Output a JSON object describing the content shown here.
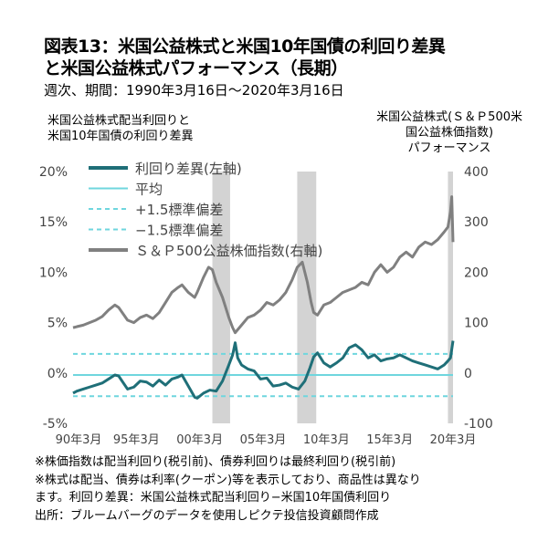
{
  "header": {
    "title_line1": "図表13：米国公益株式と米国10年国債の利回り差異",
    "title_line2": "と米国公益株式パフォーマンス（長期）",
    "subtitle": "週次、期間：1990年3月16日～2020年3月16日"
  },
  "notes": [
    "※株価指数は配当利回り(税引前)、債券利回りは最終利回り(税引前)",
    "※株式は配当、債券は利率(クーポン)等を表示しており、商品性は異なり",
    "ます。利回り差異：米国公益株式配当利回り−米国10年国債利回り",
    "出所：ブルームバーグのデータを使用しピクテ投信投資顧問作成"
  ],
  "chart_data": {
    "type": "line",
    "ylabel": "米国公益株式配当利回りと\n米国10年国債の利回り差異",
    "y2label": "米国公益株式(Ｓ＆Ｐ500米\n国公益株価指数)\nパフォーマンス",
    "ylim": [
      -5,
      20
    ],
    "y2lim": [
      -100,
      400
    ],
    "yticks": [
      "20%",
      "15%",
      "10%",
      "5%",
      "0%",
      "-5%"
    ],
    "y2ticks": [
      "400",
      "300",
      "200",
      "100",
      "0",
      "-100"
    ],
    "xticks": [
      "90年3月",
      "95年3月",
      "00年3月",
      "05年3月",
      "10年3月",
      "15年3月",
      "20年3月"
    ],
    "xlim": [
      1990.2,
      2020.2
    ],
    "legend": [
      "利回り差異(左軸)",
      "平均",
      "+1.5標準偏差",
      "−1.5標準偏差",
      "Ｓ＆Ｐ500公益株価指数(右軸)"
    ],
    "legend_position": "top-left",
    "shaded_periods": [
      [
        2001.2,
        2002.6
      ],
      [
        2007.9,
        2009.4
      ],
      [
        2019.8,
        2020.9
      ]
    ],
    "colors": {
      "spread": "#1f6f78",
      "mean": "#6fd6de",
      "band": "#6fd6de",
      "index": "#808080",
      "shade": "#d3d3d3"
    },
    "mean_line": -0.2,
    "upper_band": 1.9,
    "lower_band": -2.3,
    "series": [
      {
        "name": "利回り差異(左軸)",
        "x": [
          1990.2,
          1990.5,
          1991.0,
          1991.5,
          1992.0,
          1992.5,
          1993.0,
          1993.5,
          1993.8,
          1994.5,
          1995.0,
          1995.5,
          1996.0,
          1996.5,
          1997.0,
          1997.5,
          1998.0,
          1998.5,
          1998.8,
          1999.3,
          1999.8,
          2000.0,
          2000.5,
          2001.0,
          2001.5,
          2002.0,
          2002.5,
          2002.8,
          2003.0,
          2003.2,
          2003.5,
          2004.0,
          2004.5,
          2005.0,
          2005.5,
          2006.0,
          2006.5,
          2007.0,
          2007.5,
          2008.0,
          2008.5,
          2008.9,
          2009.2,
          2009.5,
          2010.0,
          2010.5,
          2011.0,
          2011.5,
          2012.0,
          2012.5,
          2013.0,
          2013.5,
          2014.0,
          2014.5,
          2015.0,
          2015.5,
          2016.0,
          2016.5,
          2017.0,
          2017.5,
          2018.0,
          2018.5,
          2019.0,
          2019.5,
          2019.8,
          2020.0,
          2020.2
        ],
        "values": [
          -2.0,
          -1.8,
          -1.6,
          -1.4,
          -1.2,
          -1.0,
          -0.6,
          -0.2,
          -0.3,
          -1.6,
          -1.4,
          -0.8,
          -0.9,
          -1.3,
          -0.7,
          -1.2,
          -0.6,
          -0.4,
          -0.2,
          -1.3,
          -2.4,
          -2.5,
          -2.0,
          -1.7,
          -1.8,
          -0.8,
          0.8,
          1.8,
          3.0,
          1.5,
          0.8,
          0.4,
          0.2,
          -0.6,
          -0.5,
          -1.3,
          -1.2,
          -1.0,
          -1.4,
          -1.6,
          -0.8,
          0.5,
          1.6,
          2.0,
          1.0,
          0.6,
          1.0,
          1.5,
          2.5,
          2.8,
          2.3,
          1.5,
          1.8,
          1.2,
          1.4,
          1.5,
          1.8,
          1.5,
          1.2,
          1.0,
          0.8,
          0.6,
          0.4,
          0.8,
          1.2,
          1.5,
          3.2
        ]
      },
      {
        "name": "Ｓ＆Ｐ500公益株価指数(右軸)",
        "x": [
          1990.2,
          1990.5,
          1991.0,
          1991.5,
          1992.0,
          1992.5,
          1993.0,
          1993.5,
          1993.8,
          1994.5,
          1995.0,
          1995.5,
          1996.0,
          1996.5,
          1997.0,
          1997.5,
          1998.0,
          1998.5,
          1998.8,
          1999.3,
          1999.8,
          2000.0,
          2000.5,
          2000.9,
          2001.2,
          2001.5,
          2002.0,
          2002.5,
          2002.8,
          2003.0,
          2003.5,
          2004.0,
          2004.5,
          2005.0,
          2005.5,
          2006.0,
          2006.5,
          2007.0,
          2007.5,
          2007.9,
          2008.3,
          2008.7,
          2009.0,
          2009.2,
          2009.5,
          2010.0,
          2010.5,
          2011.0,
          2011.5,
          2012.0,
          2012.5,
          2013.0,
          2013.5,
          2014.0,
          2014.5,
          2015.0,
          2015.5,
          2016.0,
          2016.5,
          2017.0,
          2017.5,
          2018.0,
          2018.5,
          2019.0,
          2019.5,
          2019.8,
          2020.0,
          2020.1,
          2020.2
        ],
        "values": [
          90,
          92,
          95,
          100,
          105,
          112,
          125,
          135,
          130,
          105,
          100,
          110,
          115,
          108,
          120,
          140,
          160,
          170,
          175,
          160,
          150,
          160,
          190,
          210,
          205,
          180,
          150,
          110,
          90,
          80,
          95,
          110,
          115,
          125,
          140,
          135,
          145,
          160,
          185,
          210,
          220,
          180,
          140,
          120,
          115,
          135,
          140,
          150,
          160,
          165,
          170,
          180,
          175,
          200,
          215,
          200,
          210,
          230,
          240,
          230,
          250,
          260,
          255,
          265,
          280,
          290,
          320,
          350,
          260
        ]
      }
    ]
  }
}
